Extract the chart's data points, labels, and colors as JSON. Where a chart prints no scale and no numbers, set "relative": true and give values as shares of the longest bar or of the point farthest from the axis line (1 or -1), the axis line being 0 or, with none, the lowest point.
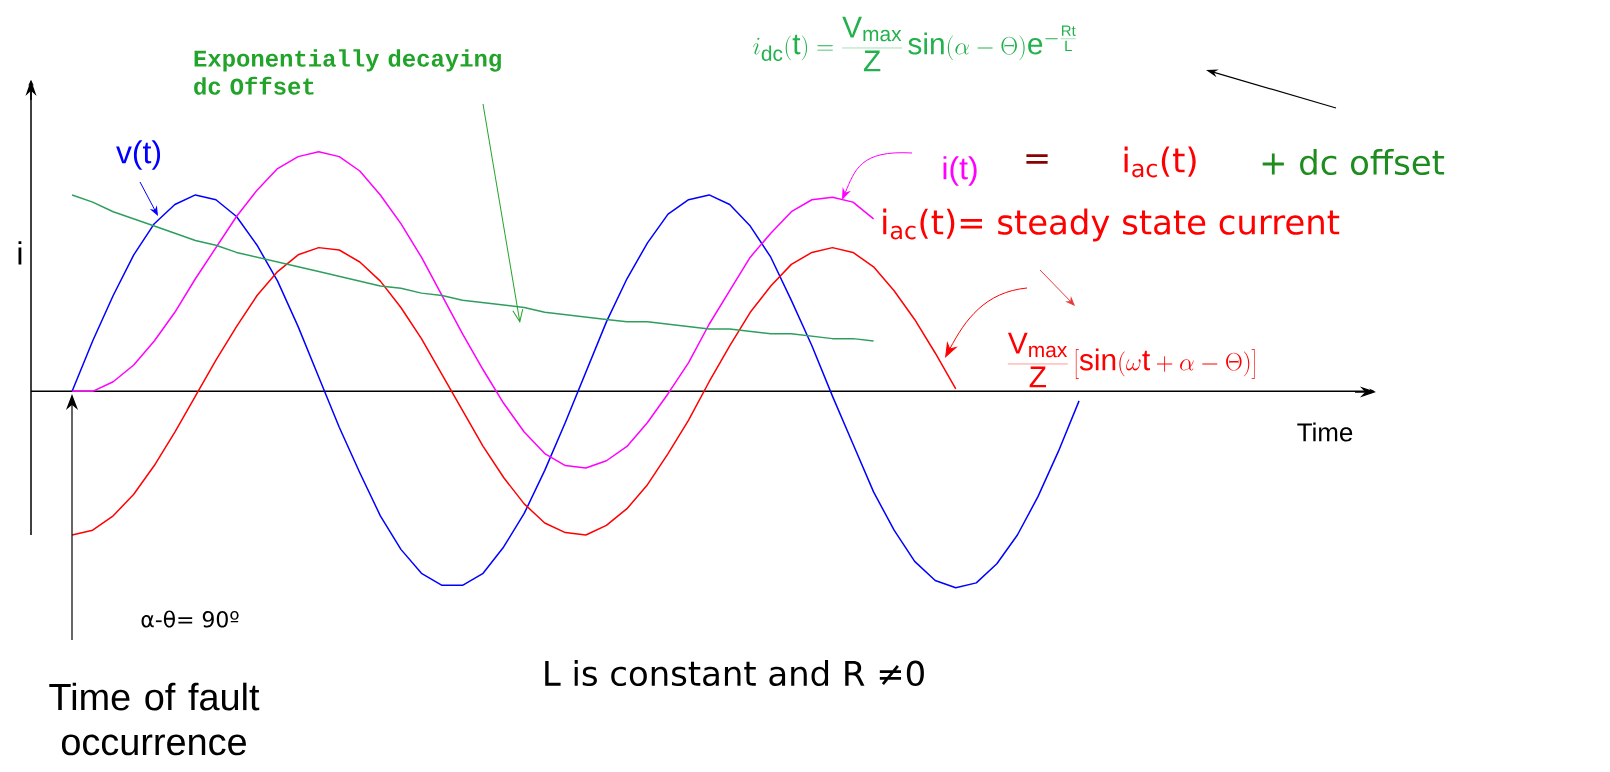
{
  "chart_data": {
    "type": "line",
    "relative": true,
    "ylabel": "i",
    "categories": [
      null,
      null,
      null,
      null,
      null,
      null,
      null,
      null,
      null,
      null,
      null,
      null,
      null,
      null,
      null,
      null,
      null,
      null,
      null,
      null,
      null,
      null,
      null,
      null,
      null,
      null,
      null,
      null,
      null,
      null,
      null,
      null,
      null,
      null,
      null,
      null,
      null,
      null,
      null,
      null,
      null,
      null,
      null,
      null,
      null,
      null,
      null,
      null,
      null,
      null
    ],
    "series": [
      {
        "name": "v(t)",
        "color": "#0000ff",
        "values": [
          0,
          0.21,
          0.4,
          0.57,
          0.7,
          0.78,
          0.82,
          0.8,
          0.73,
          0.61,
          0.46,
          0.27,
          0.06,
          -0.15,
          -0.34,
          -0.52,
          -0.66,
          -0.76,
          -0.81,
          -0.81,
          -0.76,
          -0.65,
          -0.51,
          -0.33,
          -0.13,
          0.08,
          0.29,
          0.47,
          0.62,
          0.74,
          0.8,
          0.82,
          0.78,
          0.69,
          0.56,
          0.38,
          0.19,
          -0.02,
          -0.22,
          -0.42,
          -0.58,
          -0.71,
          -0.79,
          -0.82,
          -0.8,
          -0.72,
          -0.6,
          -0.44,
          -0.25,
          -0.04
        ]
      },
      {
        "name": "i(t)",
        "color": "#ff00ff",
        "values": [
          0,
          0.0,
          0.04,
          0.11,
          0.21,
          0.33,
          0.47,
          0.6,
          0.73,
          0.84,
          0.93,
          0.98,
          1.0,
          0.98,
          0.92,
          0.82,
          0.7,
          0.56,
          0.4,
          0.24,
          0.09,
          -0.05,
          -0.17,
          -0.26,
          -0.31,
          -0.32,
          -0.29,
          -0.23,
          -0.13,
          -0.01,
          0.12,
          0.28,
          0.42,
          0.56,
          0.66,
          0.75,
          0.8,
          0.81,
          0.79,
          0.72,
          null,
          null,
          null,
          null,
          null,
          null,
          null,
          null,
          null,
          null
        ]
      },
      {
        "color": "#ff0000",
        "values": [
          -0.6,
          -0.58,
          -0.52,
          -0.43,
          -0.31,
          -0.17,
          -0.02,
          0.13,
          0.27,
          0.4,
          0.5,
          0.57,
          0.6,
          0.59,
          0.54,
          0.46,
          0.35,
          0.22,
          0.07,
          -0.08,
          -0.23,
          -0.36,
          -0.47,
          -0.55,
          -0.59,
          -0.6,
          -0.56,
          -0.49,
          -0.39,
          -0.26,
          -0.12,
          0.04,
          0.19,
          0.33,
          0.44,
          0.53,
          0.58,
          0.6,
          0.58,
          0.52,
          0.42,
          0.3,
          0.16,
          0.01,
          null,
          null,
          null,
          null,
          null,
          null
        ]
      },
      {
        "color": "#2e9e5e",
        "values": [
          0.82,
          0.79,
          0.75,
          0.72,
          0.69,
          0.66,
          0.63,
          0.61,
          0.58,
          0.56,
          0.54,
          0.52,
          0.5,
          0.48,
          0.46,
          0.44,
          0.43,
          0.41,
          0.4,
          0.38,
          0.37,
          0.36,
          0.35,
          0.33,
          0.32,
          0.31,
          0.3,
          0.29,
          0.29,
          0.28,
          0.27,
          0.26,
          0.26,
          0.25,
          0.24,
          0.24,
          0.23,
          0.22,
          0.22,
          0.21,
          null,
          null,
          null,
          null,
          null,
          null,
          null,
          null,
          null,
          null
        ]
      }
    ],
    "annotations": [
      "Exponentially decaying dc Offset",
      "i_{\\mathrm{dc}}(\\mathrm{t})=\\frac{\\mathrm{V_{max}}}{\\mathrm{Z}}\\sin(\\alpha-\\Theta)\\mathrm{e}^{-\\frac{\\mathrm{Rt}}{\\mathrm{L}}}",
      "=",
      "i$_{ac}$(t)",
      "+  dc offset",
      "i$_{ac}$(t)= steady state current",
      "\\frac{\\mathrm{V_{max}}}{\\mathrm{Z}}\\left[\\sin(\\omega\\mathrm{t}+\\alpha-\\Theta)\\right]",
      "α-θ= 90º",
      "Time of fault occurrence",
      "L is constant and R ≠0",
      "Time"
    ]
  }
}
